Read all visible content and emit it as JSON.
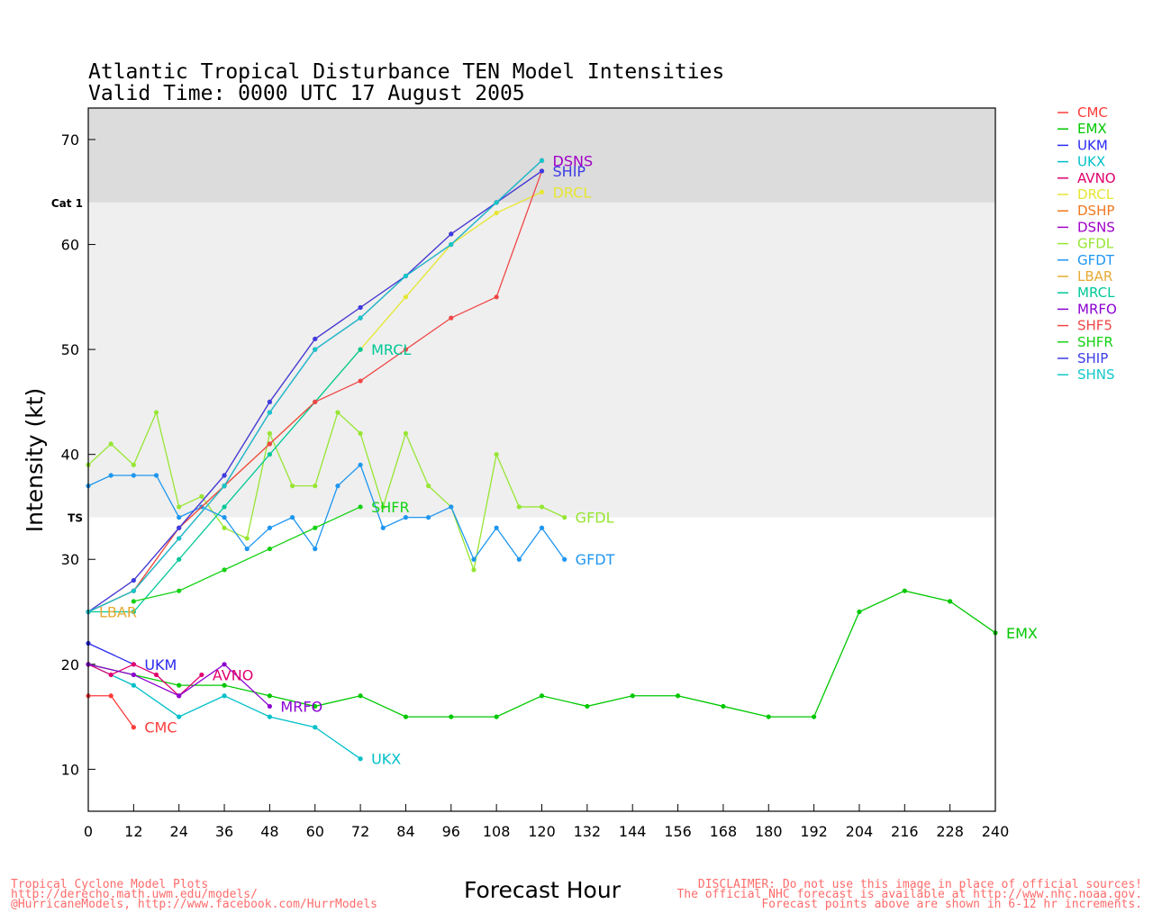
{
  "chart_data": {
    "type": "line",
    "title": "Atlantic Tropical Disturbance TEN Model Intensities",
    "subtitle": "Valid Time: 0000 UTC 17 August 2005",
    "xlabel": "Forecast Hour",
    "ylabel": "Intensity (kt)",
    "xlim": [
      0,
      240
    ],
    "ylim": [
      6,
      73
    ],
    "xticks": [
      0,
      12,
      24,
      36,
      48,
      60,
      72,
      84,
      96,
      108,
      120,
      132,
      144,
      156,
      168,
      180,
      192,
      204,
      216,
      228,
      240
    ],
    "yticks": [
      10,
      20,
      30,
      40,
      50,
      60,
      70
    ],
    "legend_position": "right",
    "bands": [
      {
        "label": "TS",
        "from": 34,
        "to": 64,
        "color": "#efefef"
      },
      {
        "label": "Cat 1",
        "from": 64,
        "to": 73,
        "color": "#dcdcdc"
      }
    ],
    "series": [
      {
        "name": "CMC",
        "color": "#ff3b3b",
        "label": "CMC",
        "x": [
          0,
          6,
          12
        ],
        "y": [
          17,
          17,
          14
        ]
      },
      {
        "name": "EMX",
        "color": "#00c800",
        "label": "EMX",
        "x": [
          0,
          12,
          24,
          36,
          48,
          60,
          72,
          84,
          96,
          108,
          120,
          132,
          144,
          156,
          168,
          180,
          192,
          204,
          216,
          228,
          240
        ],
        "y": [
          20,
          19,
          18,
          18,
          17,
          16,
          17,
          15,
          15,
          15,
          17,
          16,
          17,
          17,
          16,
          15,
          15,
          25,
          27,
          26,
          23
        ]
      },
      {
        "name": "UKM",
        "color": "#2a2af0",
        "label": "UKM",
        "x": [
          0,
          12
        ],
        "y": [
          22,
          20
        ]
      },
      {
        "name": "UKX",
        "color": "#00c0c8",
        "label": "UKX",
        "x": [
          0,
          12,
          24,
          36,
          48,
          60,
          72
        ],
        "y": [
          20,
          18,
          15,
          17,
          15,
          14,
          11
        ]
      },
      {
        "name": "AVNO",
        "color": "#e0006e",
        "label": "AVNO",
        "x": [
          0,
          6,
          12,
          18,
          24,
          30
        ],
        "y": [
          20,
          19,
          20,
          19,
          17,
          19
        ]
      },
      {
        "name": "DRCL",
        "color": "#e6e632",
        "label": "DRCL",
        "x": [
          0,
          12,
          24,
          36,
          48,
          60,
          72,
          84,
          96,
          108,
          120
        ],
        "y": [
          25,
          27,
          33,
          37,
          41,
          45,
          50,
          55,
          60,
          63,
          65
        ]
      },
      {
        "name": "DSHP",
        "color": "#f07820",
        "label": "",
        "x": [
          0,
          12,
          24,
          36,
          48,
          60,
          72,
          84,
          96,
          108,
          120
        ],
        "y": [
          25,
          28,
          33,
          38,
          45,
          51,
          54,
          57,
          61,
          64,
          67
        ]
      },
      {
        "name": "DSNS",
        "color": "#a000c8",
        "label": "DSNS",
        "x": [
          0,
          12,
          24,
          36,
          48,
          60,
          72,
          84,
          96,
          108,
          120
        ],
        "y": [
          25,
          27,
          32,
          37,
          44,
          50,
          53,
          57,
          60,
          64,
          68
        ]
      },
      {
        "name": "GFDL",
        "color": "#96e632",
        "label": "GFDL",
        "x": [
          0,
          6,
          12,
          18,
          24,
          30,
          36,
          42,
          48,
          54,
          60,
          66,
          72,
          78,
          84,
          90,
          96,
          102,
          108,
          114,
          120,
          126
        ],
        "y": [
          39,
          41,
          39,
          44,
          35,
          36,
          33,
          32,
          42,
          37,
          37,
          44,
          42,
          35,
          42,
          37,
          35,
          29,
          40,
          35,
          35,
          34
        ]
      },
      {
        "name": "GFDT",
        "color": "#1e96f0",
        "label": "GFDT",
        "x": [
          0,
          6,
          12,
          18,
          24,
          30,
          36,
          42,
          48,
          54,
          60,
          66,
          72,
          78,
          84,
          90,
          96,
          102,
          108,
          114,
          120,
          126
        ],
        "y": [
          37,
          38,
          38,
          38,
          34,
          35,
          34,
          31,
          33,
          34,
          31,
          37,
          39,
          33,
          34,
          34,
          35,
          30,
          33,
          30,
          33,
          30
        ]
      },
      {
        "name": "LBAR",
        "color": "#e6aa32",
        "label": "LBAR",
        "x": [
          0
        ],
        "y": [
          25
        ]
      },
      {
        "name": "MRCL",
        "color": "#00c896",
        "label": "MRCL",
        "x": [
          0,
          12,
          24,
          36,
          48,
          60,
          72
        ],
        "y": [
          25,
          25,
          30,
          35,
          40,
          45,
          50
        ]
      },
      {
        "name": "MRFO",
        "color": "#8c00d2",
        "label": "MRFO",
        "x": [
          0,
          12,
          24,
          36,
          48
        ],
        "y": [
          20,
          19,
          17,
          20,
          16
        ]
      },
      {
        "name": "SHF5",
        "color": "#f04646",
        "label": "",
        "x": [
          0,
          12,
          24,
          36,
          48,
          60,
          72,
          84,
          96,
          108,
          120
        ],
        "y": [
          25,
          27,
          33,
          37,
          41,
          45,
          47,
          50,
          53,
          55,
          67
        ]
      },
      {
        "name": "SHFR",
        "color": "#14d214",
        "label": "SHFR",
        "x": [
          12,
          24,
          36,
          48,
          60,
          72
        ],
        "y": [
          26,
          27,
          29,
          31,
          33,
          35
        ]
      },
      {
        "name": "SHIP",
        "color": "#3c3ce6",
        "label": "SHIP",
        "x": [
          0,
          12,
          24,
          36,
          48,
          60,
          72,
          84,
          96,
          108,
          120
        ],
        "y": [
          25,
          28,
          33,
          38,
          45,
          51,
          54,
          57,
          61,
          64,
          67
        ]
      },
      {
        "name": "SHNS",
        "color": "#14c8c8",
        "label": "",
        "x": [
          0,
          12,
          24,
          36,
          48,
          60,
          72,
          84,
          96,
          108,
          120
        ],
        "y": [
          25,
          27,
          32,
          37,
          44,
          50,
          53,
          57,
          60,
          64,
          68
        ]
      }
    ]
  },
  "footer": {
    "left": [
      "Tropical Cyclone Model Plots",
      "http://derecho.math.uwm.edu/models/",
      "@HurricaneModels, http://www.facebook.com/HurrModels"
    ],
    "right": [
      "DISCLAIMER: Do not use this image in place of official sources!",
      "The official NHC forecast is available at http://www.nhc.noaa.gov.",
      "Forecast points above are shown in 6-12 hr increments."
    ]
  }
}
